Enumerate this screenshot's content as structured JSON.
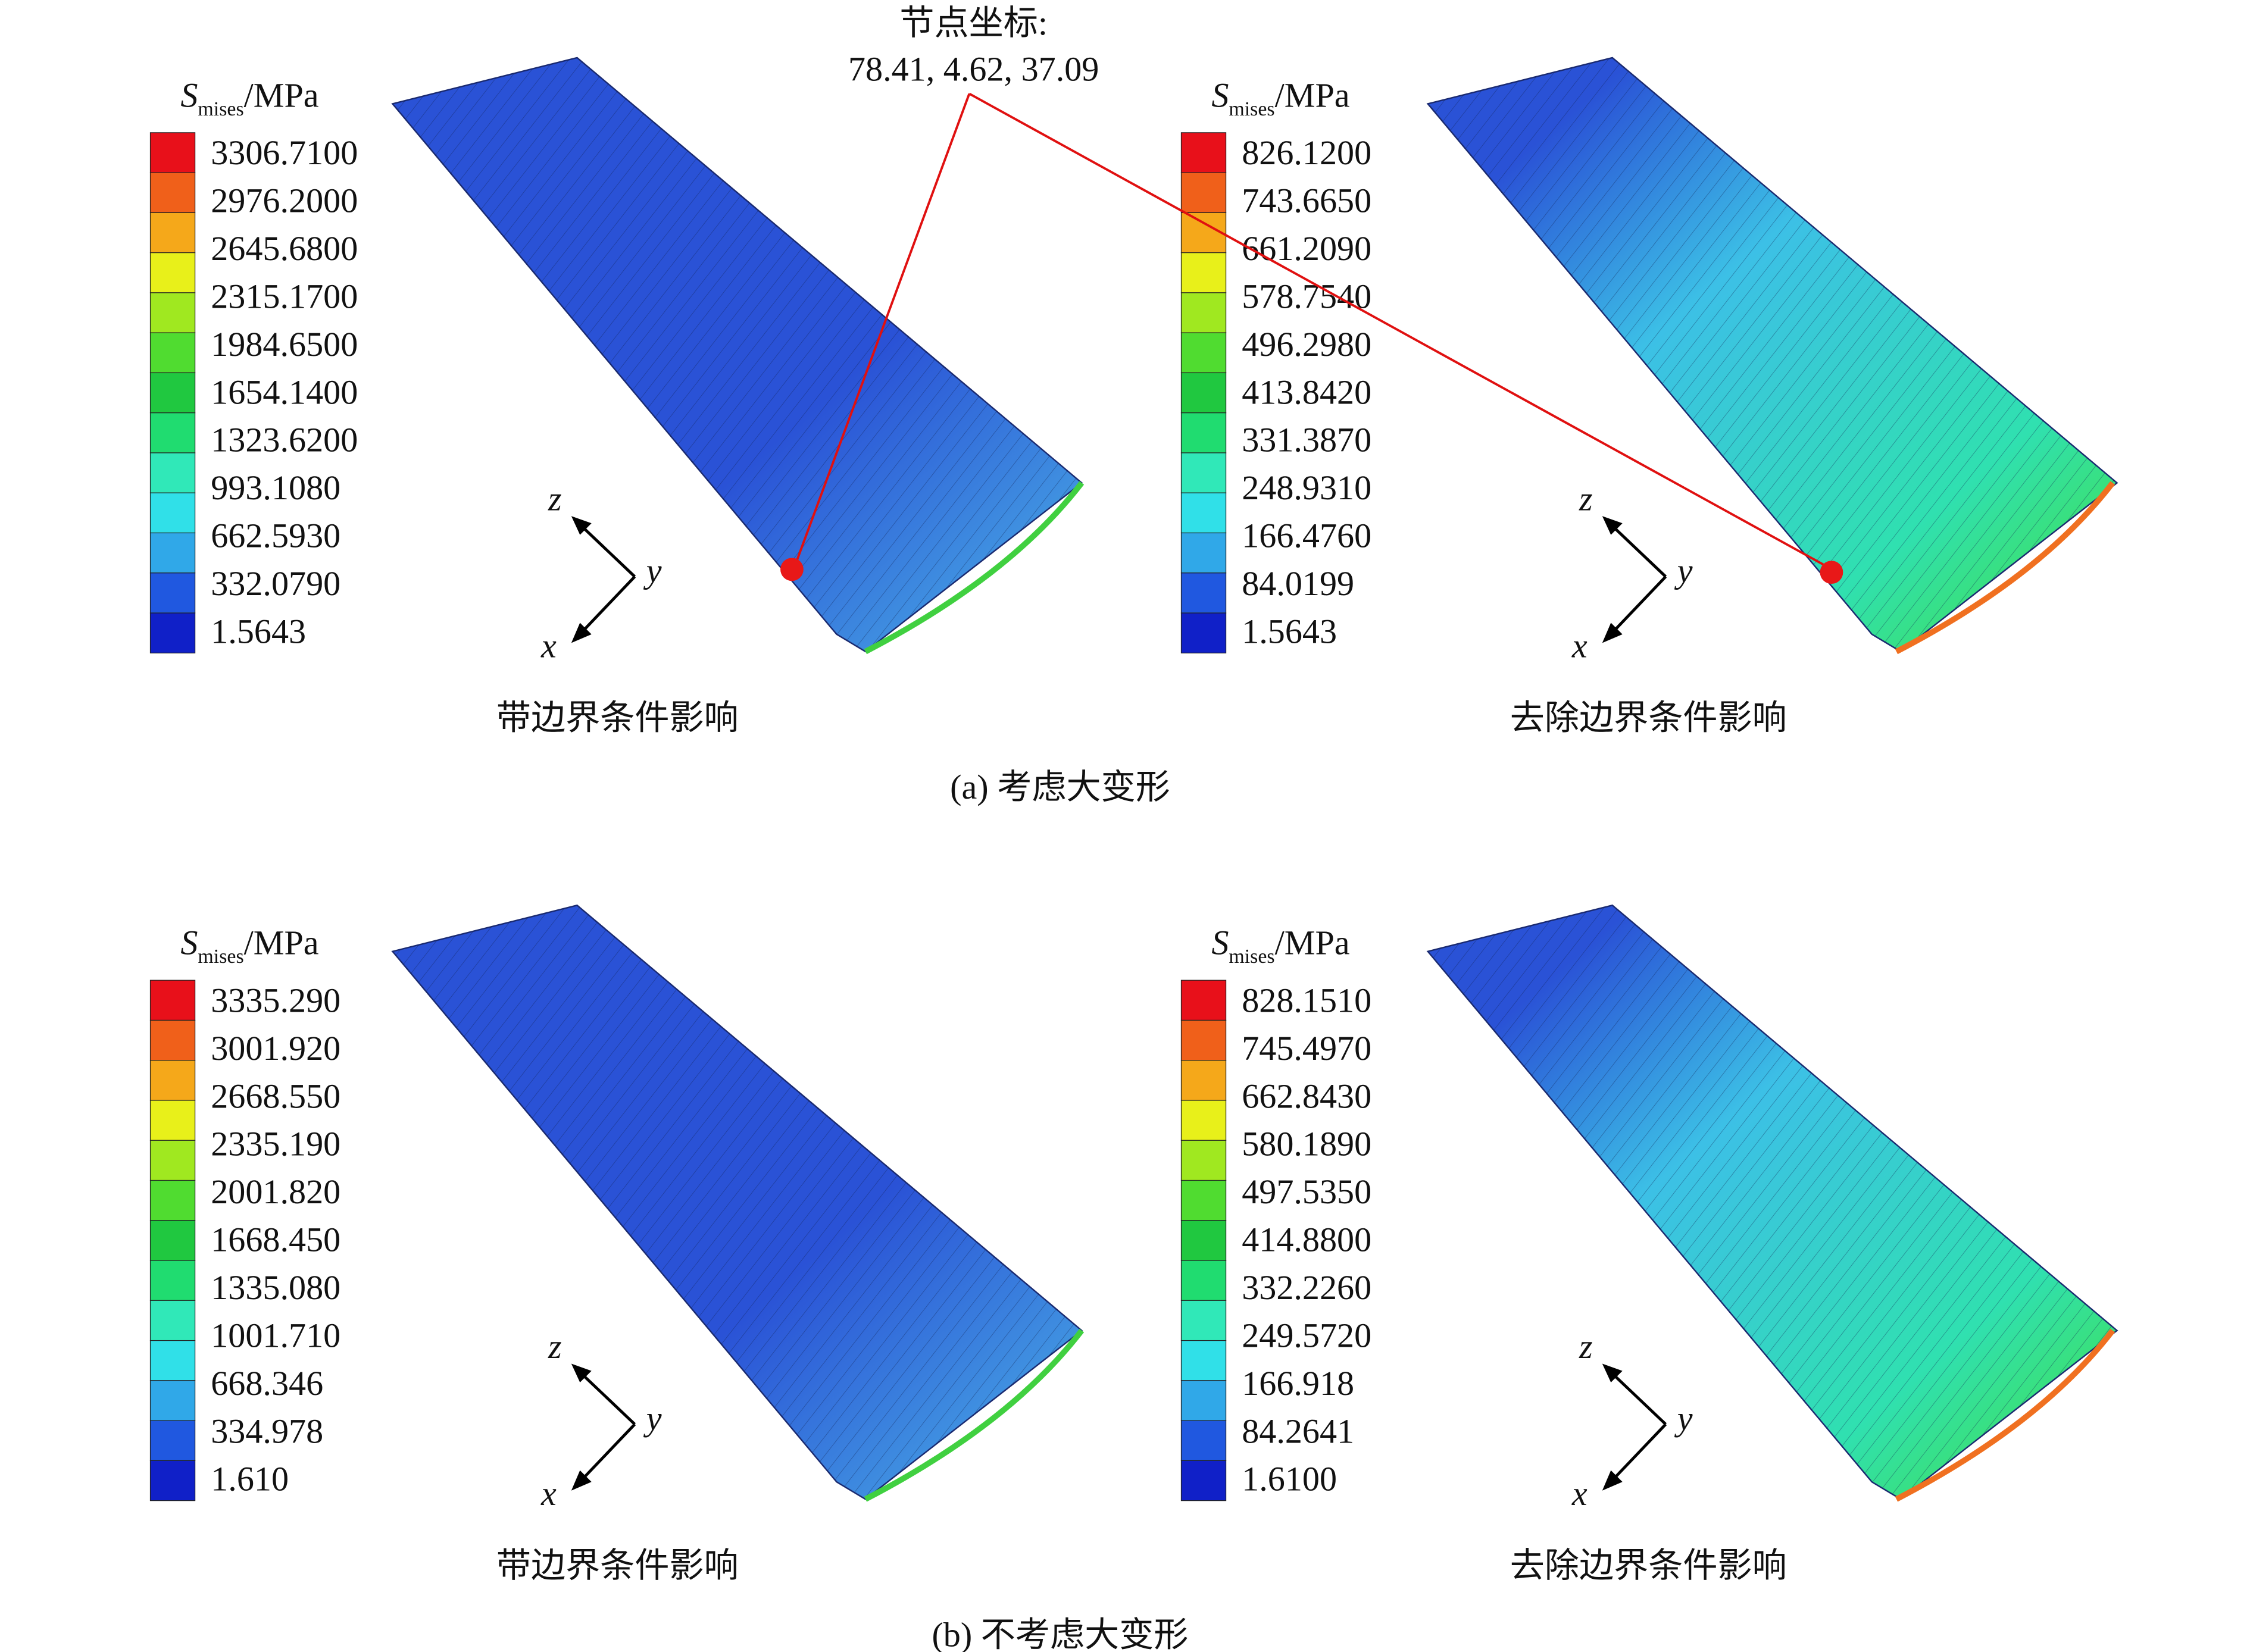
{
  "annotation": {
    "title": "节点坐标:",
    "coords": "78.41, 4.62, 37.09"
  },
  "rows": [
    {
      "caption": "(a) 考虑大变形",
      "panels": [
        {
          "legend": {
            "symbol": "S",
            "subscript": "mises",
            "unit": "/MPa",
            "levels": [
              "3306.7100",
              "2976.2000",
              "2645.6800",
              "2315.1700",
              "1984.6500",
              "1654.1400",
              "1323.6200",
              "993.1080",
              "662.5930",
              "332.0790",
              "1.5643"
            ]
          },
          "axes": {
            "z": "z",
            "y": "y",
            "x": "x"
          },
          "caption": "带边界条件影响"
        },
        {
          "legend": {
            "symbol": "S",
            "subscript": "mises",
            "unit": "/MPa",
            "levels": [
              "826.1200",
              "743.6650",
              "661.2090",
              "578.7540",
              "496.2980",
              "413.8420",
              "331.3870",
              "248.9310",
              "166.4760",
              "84.0199",
              "1.5643"
            ]
          },
          "axes": {
            "z": "z",
            "y": "y",
            "x": "x"
          },
          "caption": "去除边界条件影响"
        }
      ]
    },
    {
      "caption": "(b) 不考虑大变形",
      "panels": [
        {
          "legend": {
            "symbol": "S",
            "subscript": "mises",
            "unit": "/MPa",
            "levels": [
              "3335.290",
              "3001.920",
              "2668.550",
              "2335.190",
              "2001.820",
              "1668.450",
              "1335.080",
              "1001.710",
              "668.346",
              "334.978",
              "1.610"
            ]
          },
          "axes": {
            "z": "z",
            "y": "y",
            "x": "x"
          },
          "caption": "带边界条件影响"
        },
        {
          "legend": {
            "symbol": "S",
            "subscript": "mises",
            "unit": "/MPa",
            "levels": [
              "828.1510",
              "745.4970",
              "662.8430",
              "580.1890",
              "497.5350",
              "414.8800",
              "332.2260",
              "249.5720",
              "166.918",
              "84.2641",
              "1.6100"
            ]
          },
          "axes": {
            "z": "z",
            "y": "y",
            "x": "x"
          },
          "caption": "去除边界条件影响"
        }
      ]
    }
  ]
}
